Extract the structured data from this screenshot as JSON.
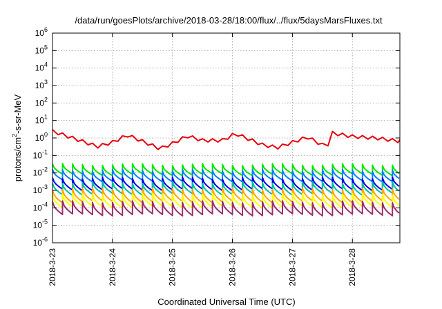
{
  "chart_data": {
    "type": "line",
    "title": "/data/run/goesPlots/archive/2018-03-28/18:00/flux/../flux/5daysMarsFluxes.txt",
    "xlabel": "Coordinated Universal Time (UTC)",
    "ylabel_base": "protons/cm",
    "ylabel_sup": "2",
    "ylabel_rest": "-s-sr-MeV",
    "xlim": [
      "2018-03-23",
      "2018-03-28T19:00"
    ],
    "ylim": [
      1e-06,
      1000000.0
    ],
    "yscale": "log",
    "grid": true,
    "xticks": [
      "2018-3-23",
      "2018-3-24",
      "2018-3-25",
      "2018-3-26",
      "2018-3-27",
      "2018-3-28"
    ],
    "yticks": [
      {
        "base": "10",
        "exp": "-6"
      },
      {
        "base": "10",
        "exp": "-5"
      },
      {
        "base": "10",
        "exp": "-4"
      },
      {
        "base": "10",
        "exp": "-3"
      },
      {
        "base": "10",
        "exp": "-2"
      },
      {
        "base": "10",
        "exp": "-1"
      },
      {
        "base": "10",
        "exp": "0"
      },
      {
        "base": "10",
        "exp": "1"
      },
      {
        "base": "10",
        "exp": "2"
      },
      {
        "base": "10",
        "exp": "3"
      },
      {
        "base": "10",
        "exp": "4"
      },
      {
        "base": "10",
        "exp": "5"
      },
      {
        "base": "10",
        "exp": "6"
      }
    ],
    "series": [
      {
        "color": "#e8000b",
        "stroke_width": 2.0,
        "pattern": "sawtooth",
        "period_days": 0.1667,
        "envelope": [
          {
            "x": "2018-03-23T00:00",
            "y": 3.0
          },
          {
            "x": "2018-03-23T10:00",
            "y": 1.0
          },
          {
            "x": "2018-03-23T18:00",
            "y": 0.4
          },
          {
            "x": "2018-03-24T00:00",
            "y": 0.7
          },
          {
            "x": "2018-03-24T06:00",
            "y": 1.8
          },
          {
            "x": "2018-03-24T12:00",
            "y": 0.8
          },
          {
            "x": "2018-03-24T19:00",
            "y": 0.3
          },
          {
            "x": "2018-03-25T00:00",
            "y": 0.6
          },
          {
            "x": "2018-03-25T06:00",
            "y": 1.6
          },
          {
            "x": "2018-03-25T12:00",
            "y": 0.9
          },
          {
            "x": "2018-03-25T20:00",
            "y": 0.9
          },
          {
            "x": "2018-03-26T00:00",
            "y": 1.8
          },
          {
            "x": "2018-03-26T02:00",
            "y": 2.0
          },
          {
            "x": "2018-03-26T12:00",
            "y": 0.5
          },
          {
            "x": "2018-03-26T18:00",
            "y": 0.35
          },
          {
            "x": "2018-03-27T00:00",
            "y": 0.7
          },
          {
            "x": "2018-03-27T06:00",
            "y": 1.4
          },
          {
            "x": "2018-03-27T14:00",
            "y": 0.35
          },
          {
            "x": "2018-03-27T15:00",
            "y": 2.5
          },
          {
            "x": "2018-03-28T00:00",
            "y": 1.5
          },
          {
            "x": "2018-03-28T10:00",
            "y": 1.2
          },
          {
            "x": "2018-03-28T19:00",
            "y": 0.8
          }
        ],
        "dip_factor": 0.65
      },
      {
        "color": "#00e600",
        "stroke_width": 2.0,
        "pattern": "spiky",
        "period_days": 0.1667,
        "peak": 0.03,
        "trough": 0.008
      },
      {
        "color": "#0080ff",
        "stroke_width": 2.0,
        "pattern": "spiky",
        "period_days": 0.1667,
        "peak": 0.014,
        "trough": 0.0035
      },
      {
        "color": "#0000ee",
        "stroke_width": 2.0,
        "pattern": "spiky",
        "period_days": 0.1667,
        "peak": 0.005,
        "trough": 0.0011
      },
      {
        "color": "#00c0a0",
        "stroke_width": 2.0,
        "pattern": "spiky",
        "period_days": 0.1667,
        "peak": 0.0028,
        "trough": 0.0006
      },
      {
        "color": "#ffa500",
        "stroke_width": 2.0,
        "pattern": "spiky",
        "period_days": 0.1667,
        "peak": 0.0012,
        "trough": 0.00022
      },
      {
        "color": "#ffff00",
        "stroke_width": 2.0,
        "pattern": "spiky",
        "period_days": 0.1667,
        "peak": 0.0006,
        "trough": 0.00011
      },
      {
        "color": "#9b2d6e",
        "stroke_width": 2.0,
        "pattern": "spiky",
        "period_days": 0.1667,
        "peak": 0.00022,
        "trough": 4e-05
      }
    ]
  }
}
